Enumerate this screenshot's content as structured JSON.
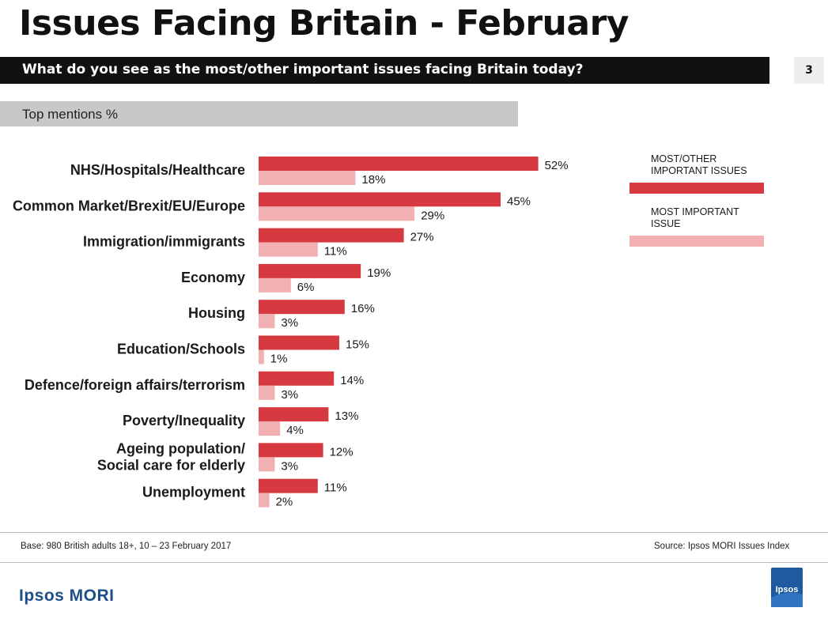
{
  "page": {
    "title": "Issues Facing Britain - February",
    "question": "What do you see as the most/other important issues facing Britain today?",
    "page_number": "3",
    "subheader": "Top mentions %",
    "base_note": "Base: 980 British adults 18+, 10 – 23 February 2017",
    "source_note": "Source: Ipsos MORI Issues Index",
    "brand": "Ipsos MORI",
    "logo_text": "Ipsos"
  },
  "colors": {
    "series_primary": "#d6393f",
    "series_secondary": "#f2b0b3",
    "logo_blue": "#1d5aa0"
  },
  "chart_data": {
    "type": "bar",
    "orientation": "horizontal",
    "categories": [
      "NHS/Hospitals/Healthcare",
      "Common Market/Brexit/EU/Europe",
      "Immigration/immigrants",
      "Economy",
      "Housing",
      "Education/Schools",
      "Defence/foreign affairs/terrorism",
      "Poverty/Inequality",
      "Ageing population/\nSocial care for elderly",
      "Unemployment"
    ],
    "series": [
      {
        "name": "MOST/OTHER IMPORTANT ISSUES",
        "values": [
          52,
          45,
          27,
          19,
          16,
          15,
          14,
          13,
          12,
          11
        ],
        "labels": [
          "52%",
          "45%",
          "27%",
          "19%",
          "16%",
          "15%",
          "14%",
          "13%",
          "12%",
          "11%"
        ]
      },
      {
        "name": "MOST IMPORTANT ISSUE",
        "values": [
          18,
          29,
          11,
          6,
          3,
          1,
          3,
          4,
          3,
          2
        ],
        "labels": [
          "18%",
          "29%",
          "11%",
          "6%",
          "3%",
          "1%",
          "3%",
          "4%",
          "3%",
          "2%"
        ]
      }
    ],
    "legend": [
      "MOST/OTHER\nIMPORTANT ISSUES",
      "MOST IMPORTANT\nISSUE"
    ],
    "legend_position": "right",
    "xlim": [
      0,
      52
    ],
    "grid": false
  }
}
